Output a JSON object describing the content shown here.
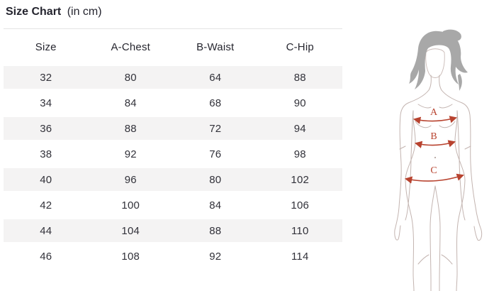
{
  "title": {
    "main": "Size Chart",
    "suffix": "(in cm)"
  },
  "table": {
    "columns": [
      "Size",
      "A-Chest",
      "B-Waist",
      "C-Hip"
    ],
    "rows": [
      [
        "32",
        "80",
        "64",
        "88"
      ],
      [
        "34",
        "84",
        "68",
        "90"
      ],
      [
        "36",
        "88",
        "72",
        "94"
      ],
      [
        "38",
        "92",
        "76",
        "98"
      ],
      [
        "40",
        "96",
        "80",
        "102"
      ],
      [
        "42",
        "100",
        "84",
        "106"
      ],
      [
        "44",
        "104",
        "88",
        "110"
      ],
      [
        "46",
        "108",
        "92",
        "114"
      ]
    ]
  },
  "figure": {
    "labels": [
      "A",
      "B",
      "C"
    ],
    "measurements": [
      {
        "label": "A",
        "meaning": "Chest"
      },
      {
        "label": "B",
        "meaning": "Waist"
      },
      {
        "label": "C",
        "meaning": "Hip"
      }
    ]
  },
  "colors": {
    "accent_red": "#b8432f",
    "stripe_gray": "#f4f3f3",
    "border_gray": "#e4e4e4",
    "text_dark": "#2c2c34",
    "hair_gray": "#a8a8a8",
    "outline": "#c3b4b0"
  }
}
